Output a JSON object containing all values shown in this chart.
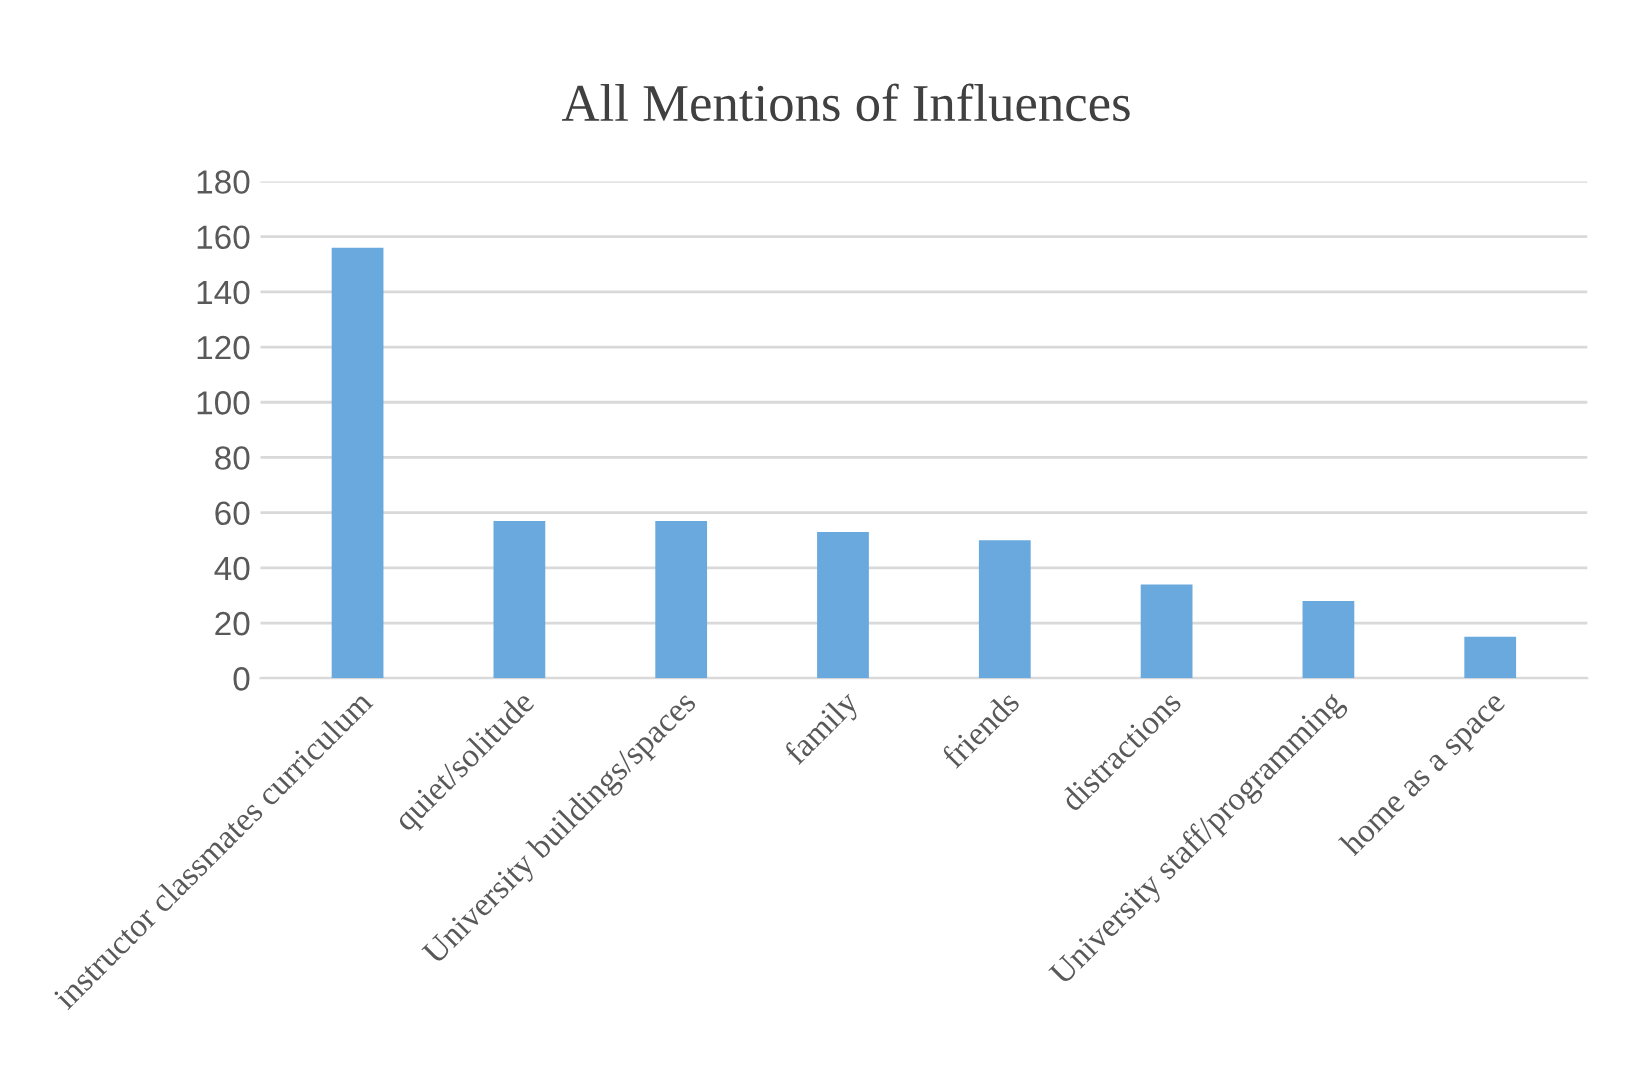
{
  "chart_data": {
    "type": "bar",
    "title": "All Mentions of Influences",
    "categories": [
      "instructor classmates curriculum",
      "quiet/solitude",
      "University buildings/spaces",
      "family",
      "friends",
      "distractions",
      "University staff/programming",
      "home as a space"
    ],
    "values": [
      156,
      57,
      57,
      53,
      50,
      34,
      28,
      15
    ],
    "color": "#6aa9dd",
    "ylim": [
      0,
      180
    ],
    "yticks": [
      0,
      20,
      40,
      60,
      80,
      100,
      120,
      140,
      160,
      180
    ],
    "grid": "y"
  }
}
